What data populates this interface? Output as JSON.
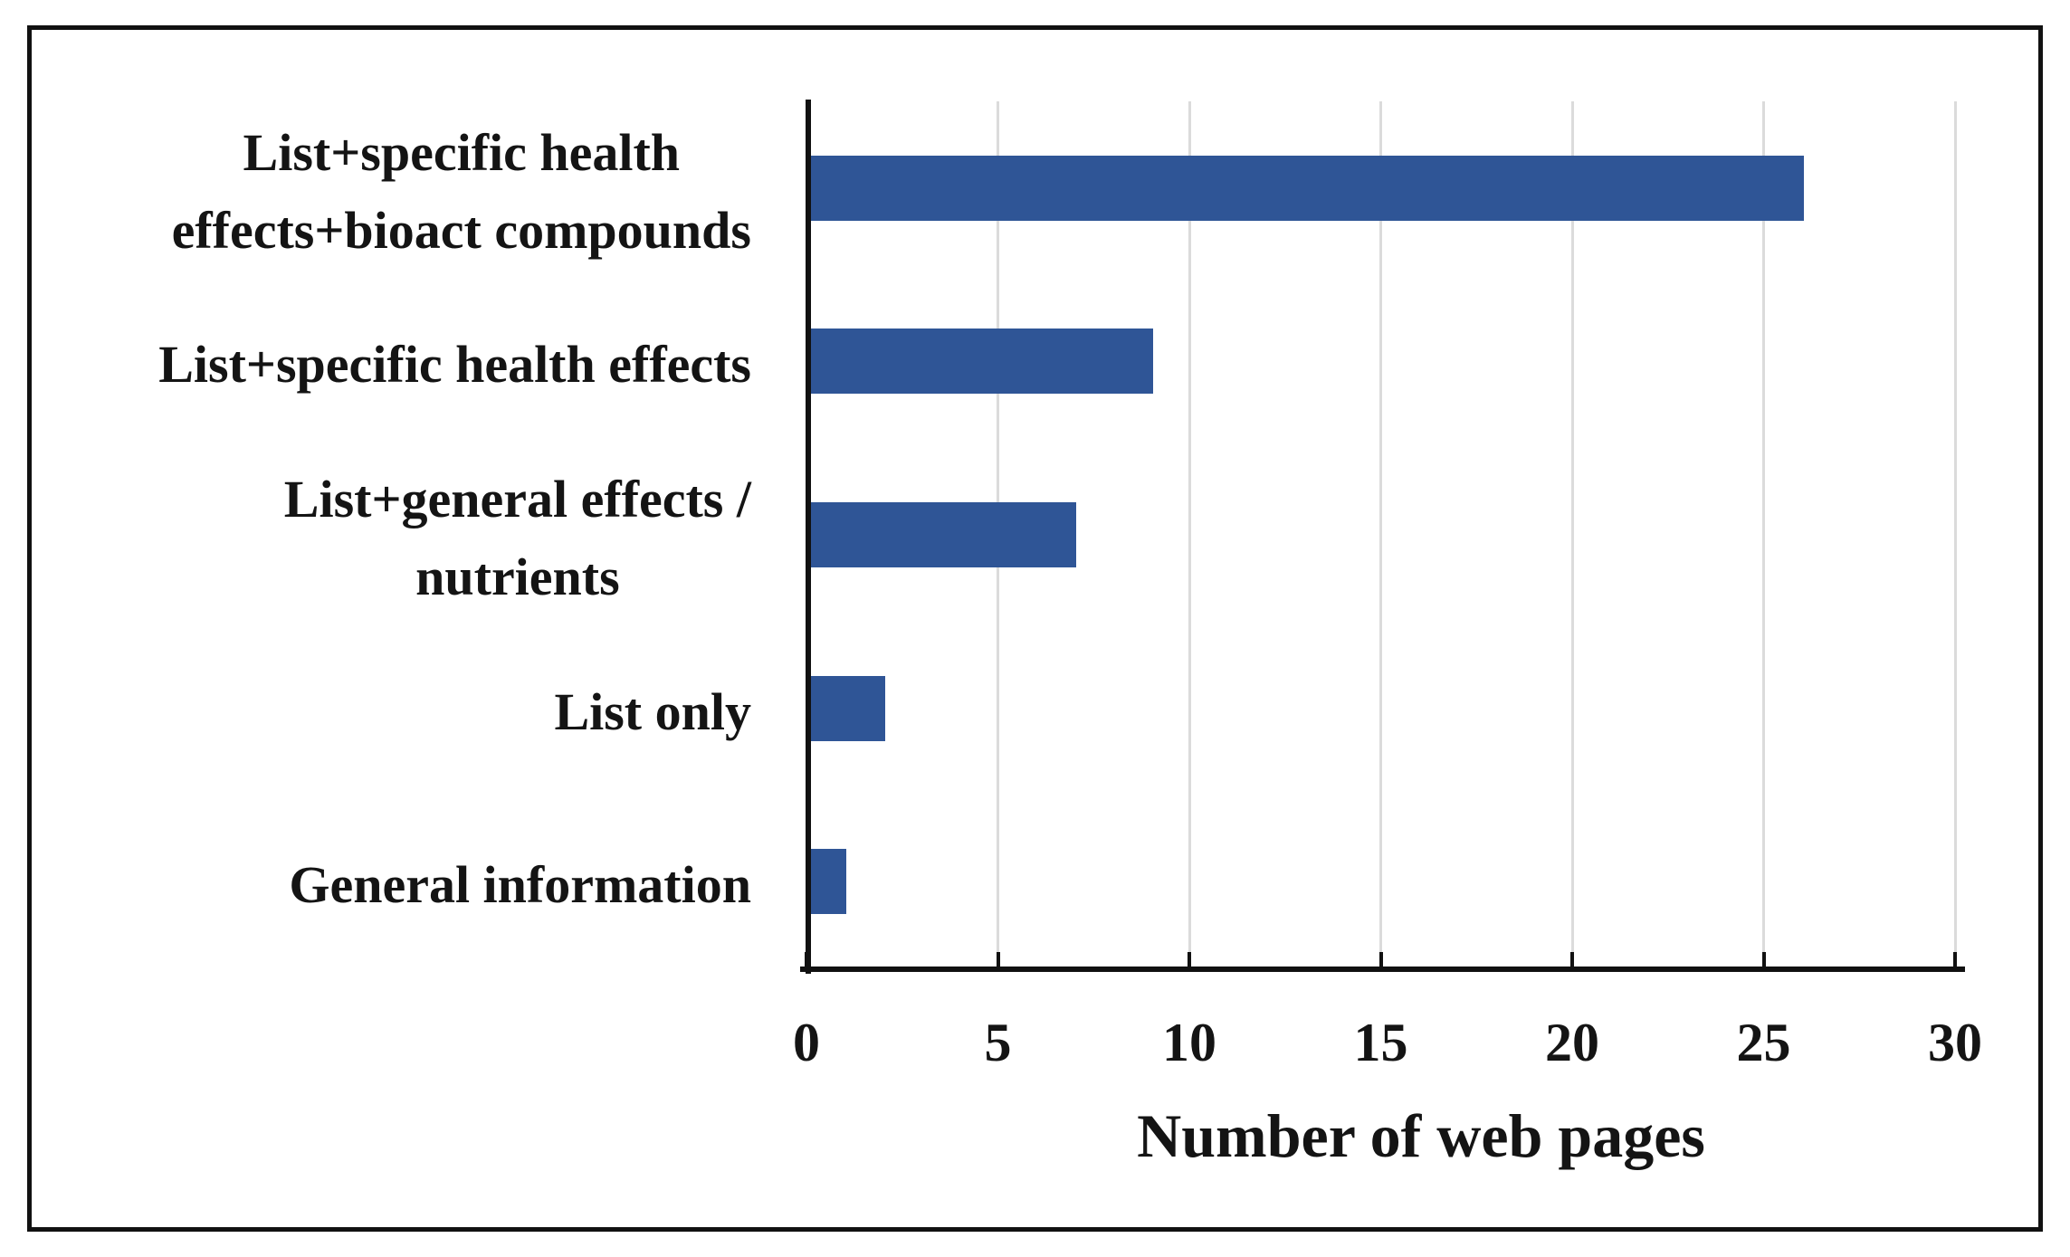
{
  "figure": {
    "background_color": "#ffffff",
    "border_color": "#111111",
    "text_color": "#141414"
  },
  "chart_data": {
    "type": "bar",
    "orientation": "horizontal",
    "title": "",
    "xlabel": "Number of web pages",
    "ylabel": "",
    "categories": [
      "List+specific health effects+bioact compounds",
      "List+specific health effects",
      "List+general effects / nutrients",
      "List only",
      "General information"
    ],
    "category_lines": [
      [
        "List+specific health",
        "effects+bioact compounds"
      ],
      [
        "List+specific health effects"
      ],
      [
        "List+general effects /",
        "nutrients"
      ],
      [
        "List only"
      ],
      [
        "General information"
      ]
    ],
    "values": [
      26,
      9,
      7,
      2,
      1
    ],
    "x_ticks": [
      0,
      5,
      10,
      15,
      20,
      25,
      30
    ],
    "xlim": [
      0,
      30
    ],
    "grid": "vertical-gridlines-at-ticks",
    "legend": "none",
    "bar_color": "#2F5596",
    "gridline_color": "#DBDBDB",
    "axis_color": "#111111"
  }
}
